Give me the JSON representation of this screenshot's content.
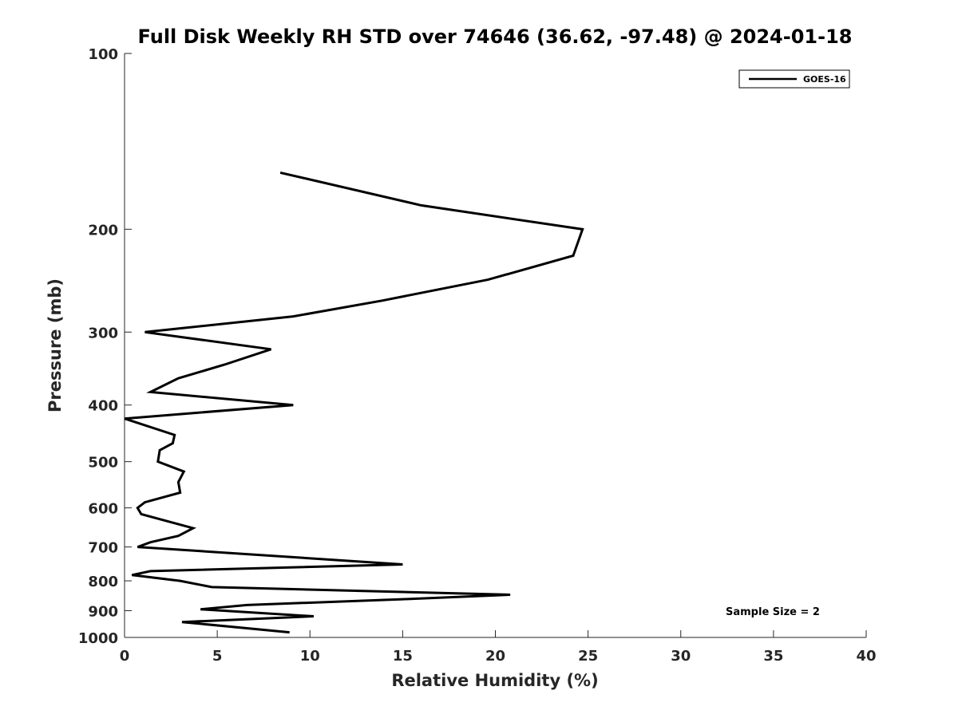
{
  "chart_data": {
    "type": "line",
    "title": "Full Disk Weekly RH STD over 74646 (36.62, -97.48) @ 2024-01-18",
    "xlabel": "Relative Humidity (%)",
    "ylabel": "Pressure (mb)",
    "xlim": [
      0,
      40
    ],
    "ylim": [
      100,
      1000
    ],
    "y_scale": "log",
    "y_reversed": true,
    "xticks": [
      0,
      5,
      10,
      15,
      20,
      25,
      30,
      35,
      40
    ],
    "yticks": [
      100,
      200,
      300,
      400,
      500,
      600,
      700,
      800,
      900,
      1000
    ],
    "grid": false,
    "legend_position": "top-right",
    "annotation": "Sample Size = 2",
    "series": [
      {
        "name": "GOES-16",
        "color": "#000000",
        "x": [
          8.4,
          16.0,
          24.7,
          24.2,
          19.6,
          13.9,
          9.1,
          1.1,
          7.9,
          5.4,
          2.9,
          1.4,
          9.1,
          0.0,
          2.7,
          2.6,
          1.9,
          1.8,
          3.2,
          2.9,
          3.0,
          1.1,
          0.7,
          0.9,
          3.7,
          2.9,
          1.4,
          0.7,
          6.6,
          15.0,
          1.4,
          0.4,
          3.0,
          4.7,
          20.8,
          15.0,
          6.6,
          4.1,
          10.2,
          3.1,
          8.9
        ],
        "y": [
          160,
          182,
          200,
          222,
          244,
          265,
          282,
          300,
          321,
          341,
          360,
          380,
          400,
          422,
          450,
          465,
          478,
          500,
          520,
          542,
          565,
          587,
          600,
          615,
          650,
          670,
          687,
          700,
          720,
          750,
          770,
          782,
          800,
          820,
          845,
          860,
          880,
          895,
          920,
          941,
          980
        ]
      }
    ]
  }
}
